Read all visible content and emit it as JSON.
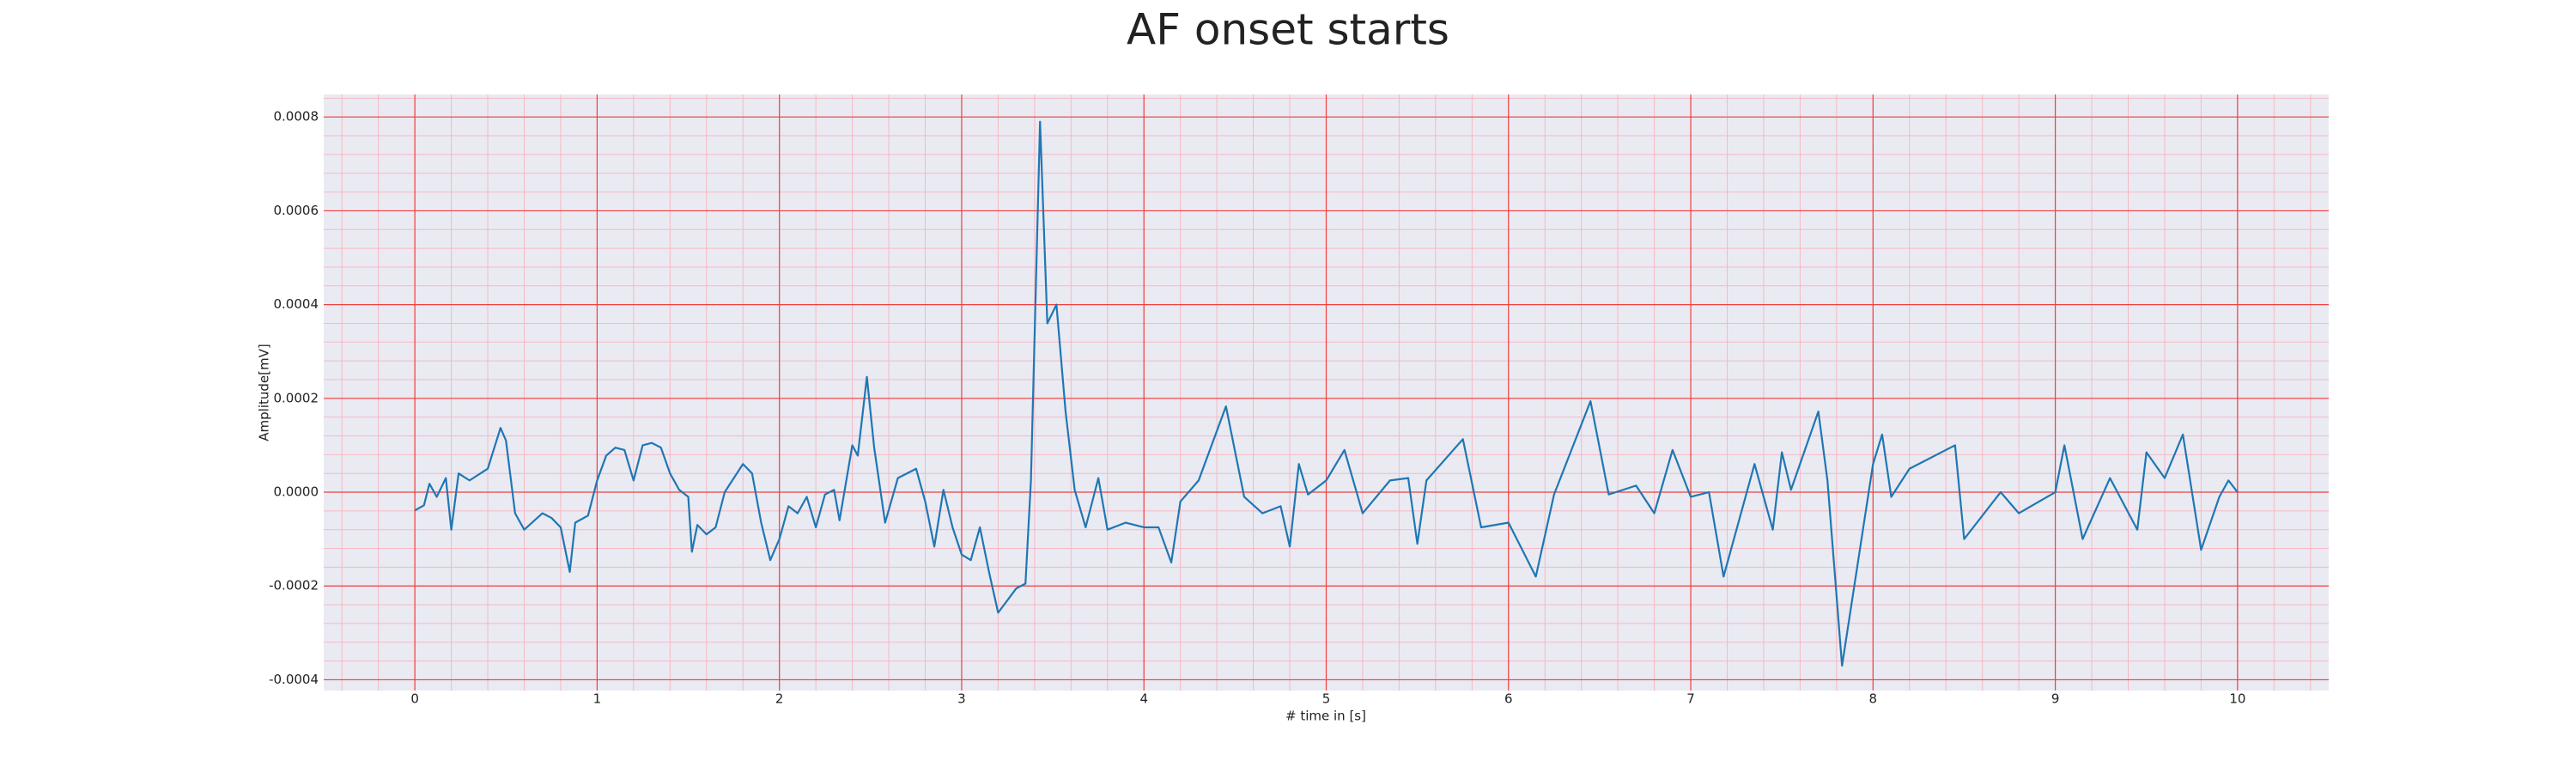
{
  "chart_data": {
    "type": "line",
    "title": "AF onset starts",
    "x_label": "# time in [s]",
    "y_label": "Amplitude[mV]",
    "color": "#1f77b4",
    "background": "#eaeaf2",
    "grid": true,
    "grid_color": "#f04040",
    "minor_grid": true,
    "minor_grid_color": "#f6b8c4",
    "xlim": [
      -0.5,
      10.5
    ],
    "xticks": [
      0,
      1,
      2,
      3,
      4,
      5,
      6,
      7,
      8,
      9,
      10
    ],
    "ylim": [
      -0.000423,
      0.000848
    ],
    "yticks": [
      -0.0004,
      -0.0002,
      {
        "value": 0,
        "label": "0.0000"
      },
      0.0002,
      0.0004,
      0.0006,
      0.0008
    ],
    "x": [
      0,
      0.05,
      0.08,
      0.12,
      0.17,
      0.2,
      0.24,
      0.3,
      0.4,
      0.47,
      0.5,
      0.55,
      0.6,
      0.7,
      0.75,
      0.8,
      0.85,
      0.88,
      0.95,
      1.0,
      1.05,
      1.1,
      1.15,
      1.2,
      1.25,
      1.3,
      1.35,
      1.4,
      1.45,
      1.5,
      1.52,
      1.55,
      1.6,
      1.65,
      1.7,
      1.8,
      1.85,
      1.9,
      1.95,
      2.0,
      2.05,
      2.1,
      2.15,
      2.2,
      2.25,
      2.3,
      2.33,
      2.4,
      2.43,
      2.48,
      2.52,
      2.58,
      2.65,
      2.75,
      2.8,
      2.85,
      2.9,
      2.95,
      3.0,
      3.05,
      3.1,
      3.15,
      3.2,
      3.3,
      3.35,
      3.38,
      3.43,
      3.47,
      3.52,
      3.57,
      3.62,
      3.68,
      3.75,
      3.8,
      3.9,
      4.0,
      4.08,
      4.15,
      4.2,
      4.3,
      4.45,
      4.55,
      4.65,
      4.75,
      4.8,
      4.85,
      4.9,
      5.0,
      5.1,
      5.2,
      5.35,
      5.45,
      5.5,
      5.55,
      5.75,
      5.85,
      6.0,
      6.15,
      6.25,
      6.45,
      6.55,
      6.7,
      6.8,
      6.9,
      7.0,
      7.1,
      7.18,
      7.35,
      7.45,
      7.5,
      7.55,
      7.7,
      7.75,
      7.83,
      8.0,
      8.05,
      8.1,
      8.2,
      8.45,
      8.5,
      8.7,
      8.8,
      9.0,
      9.05,
      9.15,
      9.3,
      9.45,
      9.5,
      9.6,
      9.7,
      9.8,
      9.9,
      9.95,
      10.0
    ],
    "values": [
      -3.9e-05,
      -2.8e-05,
      1.8e-05,
      -1e-05,
      3e-05,
      -8e-05,
      4e-05,
      2.5e-05,
      5e-05,
      0.000137,
      0.00011,
      -4.5e-05,
      -8e-05,
      -4.5e-05,
      -5.5e-05,
      -7.5e-05,
      -0.00017,
      -6.5e-05,
      -5e-05,
      2.5e-05,
      7.8e-05,
      9.5e-05,
      9e-05,
      2.5e-05,
      0.0001,
      0.000105,
      9.5e-05,
      4e-05,
      5e-06,
      -1e-05,
      -0.000127,
      -7e-05,
      -9e-05,
      -7.5e-05,
      0,
      6e-05,
      4e-05,
      -6.5e-05,
      -0.000145,
      -0.0001,
      -3e-05,
      -4.5e-05,
      -1e-05,
      -7.5e-05,
      -5e-06,
      5e-06,
      -6e-05,
      0.0001,
      7.8e-05,
      0.000246,
      9.5e-05,
      -6.5e-05,
      3e-05,
      5e-05,
      -2e-05,
      -0.000116,
      5e-06,
      -7.5e-05,
      -0.000133,
      -0.000145,
      -7.5e-05,
      -0.00017,
      -0.000257,
      -0.000205,
      -0.000195,
      2.5e-05,
      0.00079,
      0.00036,
      0.0004,
      0.000172,
      5e-06,
      -7.5e-05,
      3e-05,
      -8e-05,
      -6.5e-05,
      -7.5e-05,
      -7.5e-05,
      -0.00015,
      -2e-05,
      2.5e-05,
      0.000183,
      -1e-05,
      -4.5e-05,
      -3e-05,
      -0.000116,
      6e-05,
      -5e-06,
      2.5e-05,
      9e-05,
      -4.5e-05,
      2.5e-05,
      3e-05,
      -0.00011,
      2.5e-05,
      0.000113,
      -7.5e-05,
      -6.5e-05,
      -0.00018,
      -5e-06,
      0.000194,
      -5e-06,
      1.4e-05,
      -4.5e-05,
      9e-05,
      -1e-05,
      0,
      -0.00018,
      6e-05,
      -8e-05,
      8.5e-05,
      5e-06,
      0.000172,
      2.5e-05,
      -0.00037,
      6e-05,
      0.000123,
      -1e-05,
      5e-05,
      0.0001,
      -0.0001,
      0,
      -4.5e-05,
      0,
      0.0001,
      -0.0001,
      3e-05,
      -8e-05,
      8.5e-05,
      3e-05,
      0.000123,
      -0.000123,
      -1e-05,
      2.5e-05,
      0
    ]
  }
}
